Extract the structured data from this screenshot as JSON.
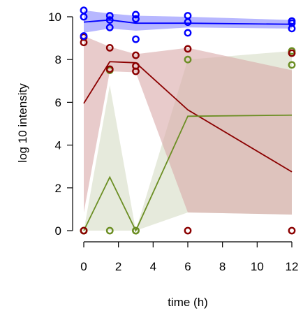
{
  "chart_data": {
    "type": "line",
    "title": "",
    "xlabel": "time (h)",
    "ylabel": "log 10 intensity",
    "xlim": [
      0,
      12
    ],
    "ylim": [
      0,
      10
    ],
    "x_ticks": [
      0,
      2,
      4,
      6,
      8,
      10,
      12
    ],
    "y_ticks": [
      0,
      2,
      4,
      6,
      8,
      10
    ],
    "grid": false,
    "legend": "none",
    "x": [
      0,
      1.5,
      3,
      6,
      12
    ],
    "series": [
      {
        "color": "#0000ff",
        "band_color": "#9999ff",
        "mean": [
          9.75,
          9.85,
          9.7,
          9.7,
          9.65
        ],
        "band_low": [
          9.25,
          9.45,
          9.35,
          9.5,
          9.45
        ],
        "band_high": [
          10.3,
          10.15,
          10.05,
          10.0,
          9.85
        ],
        "points": [
          {
            "x": 0,
            "y": 10.3
          },
          {
            "x": 0,
            "y": 10.0
          },
          {
            "x": 0,
            "y": 9.1
          },
          {
            "x": 1.5,
            "y": 10.05
          },
          {
            "x": 1.5,
            "y": 9.85
          },
          {
            "x": 1.5,
            "y": 9.5
          },
          {
            "x": 3,
            "y": 10.1
          },
          {
            "x": 3,
            "y": 9.9
          },
          {
            "x": 3,
            "y": 8.95
          },
          {
            "x": 6,
            "y": 10.05
          },
          {
            "x": 6,
            "y": 9.75
          },
          {
            "x": 6,
            "y": 9.25
          },
          {
            "x": 12,
            "y": 9.8
          },
          {
            "x": 12,
            "y": 9.7
          },
          {
            "x": 12,
            "y": 9.45
          }
        ]
      },
      {
        "color": "#8b0000",
        "band_color": "#d9a8a8",
        "mean": [
          5.95,
          7.9,
          7.85,
          5.65,
          2.75
        ],
        "band_low": [
          0.85,
          7.45,
          7.4,
          0.85,
          0.75
        ],
        "band_high": [
          9.1,
          8.6,
          8.25,
          8.55,
          7.5
        ],
        "points": [
          {
            "x": 0,
            "y": 9.05
          },
          {
            "x": 0,
            "y": 8.8
          },
          {
            "x": 0,
            "y": 0
          },
          {
            "x": 1.5,
            "y": 8.55
          },
          {
            "x": 1.5,
            "y": 7.55
          },
          {
            "x": 3,
            "y": 8.2
          },
          {
            "x": 3,
            "y": 7.7
          },
          {
            "x": 3,
            "y": 7.45
          },
          {
            "x": 6,
            "y": 8.5
          },
          {
            "x": 6,
            "y": 0
          },
          {
            "x": 12,
            "y": 8.3
          },
          {
            "x": 12,
            "y": 0
          }
        ]
      },
      {
        "color": "#6b8e23",
        "band_color": "#d6dcc4",
        "mean": [
          0,
          2.5,
          0,
          5.35,
          5.4
        ],
        "band_low": [
          0,
          0,
          0,
          0.85,
          0.75
        ],
        "band_high": [
          0,
          6.8,
          0,
          8.0,
          8.4
        ],
        "points": [
          {
            "x": 0,
            "y": 0
          },
          {
            "x": 0,
            "y": 0
          },
          {
            "x": 1.5,
            "y": 7.5
          },
          {
            "x": 1.5,
            "y": 0
          },
          {
            "x": 3,
            "y": 0
          },
          {
            "x": 3,
            "y": 0
          },
          {
            "x": 6,
            "y": 8.0
          },
          {
            "x": 12,
            "y": 8.4
          },
          {
            "x": 12,
            "y": 7.75
          }
        ]
      }
    ]
  }
}
